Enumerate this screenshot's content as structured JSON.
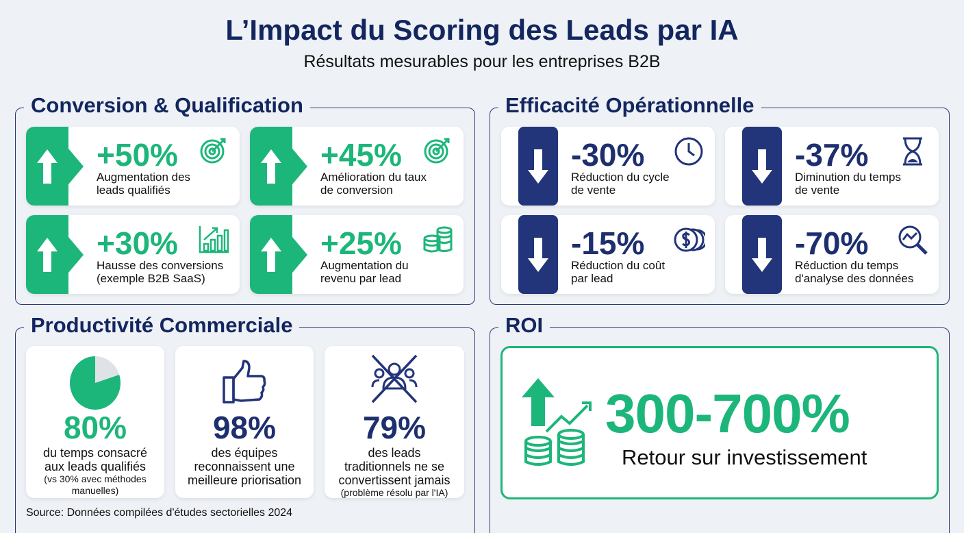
{
  "header": {
    "title": "L’Impact du Scoring des Leads par IA",
    "subtitle": "Résultats mesurables pour les entreprises B2B"
  },
  "colors": {
    "green": "#1db67a",
    "navy": "#13265e",
    "blue_block": "#22347a"
  },
  "conversion": {
    "title": "Conversion & Qualification",
    "cards": [
      {
        "value": "+50%",
        "line1": "Augmentation des",
        "line2": "leads qualifiés",
        "icon": "target-icon",
        "direction": "up"
      },
      {
        "value": "+45%",
        "line1": "Amélioration du taux",
        "line2": "de conversion",
        "icon": "target-icon",
        "direction": "up"
      },
      {
        "value": "+30%",
        "line1": "Hausse des conversions",
        "line2": "(exemple B2B SaaS)",
        "icon": "bar-chart-icon",
        "direction": "up"
      },
      {
        "value": "+25%",
        "line1": "Augmentation du",
        "line2": "revenu par lead",
        "icon": "coins-icon",
        "direction": "up"
      }
    ]
  },
  "efficiency": {
    "title": "Efficacité Opérationnelle",
    "cards": [
      {
        "value": "-30%",
        "line1": "Réduction du cycle",
        "line2": "de vente",
        "icon": "clock-icon",
        "direction": "down"
      },
      {
        "value": "-37%",
        "line1": "Diminution du temps",
        "line2": "de vente",
        "icon": "hourglass-icon",
        "direction": "down"
      },
      {
        "value": "-15%",
        "line1": "Réduction du coût",
        "line2": "par lead",
        "icon": "dollar-coins-icon",
        "direction": "down"
      },
      {
        "value": "-70%",
        "line1": "Réduction du temps",
        "line2": "d'analyse des données",
        "icon": "magnifier-chart-icon",
        "direction": "down"
      }
    ]
  },
  "productivity": {
    "title": "Productivité Commerciale",
    "cards": [
      {
        "value": "80%",
        "text1": "du temps consacré",
        "text2": "aux leads qualifiés",
        "note": "(vs 30% avec méthodes manuelles)",
        "icon": "pie-chart-icon",
        "pie_fraction": 0.8
      },
      {
        "value": "98%",
        "text1": "des équipes",
        "text2": "reconnaissent une meilleure priorisation",
        "note": "",
        "icon": "thumbs-up-icon"
      },
      {
        "value": "79%",
        "text1": "des leads",
        "text2": "traditionnels ne se convertissent jamais",
        "note": "(problème résolu par l'IA)",
        "icon": "crossed-people-icon"
      }
    ]
  },
  "roi": {
    "title": "ROI",
    "value": "300-700%",
    "label": "Retour sur investissement",
    "icon": "growth-coins-icon"
  },
  "source": "Source: Données compilées d'études sectorielles 2024"
}
